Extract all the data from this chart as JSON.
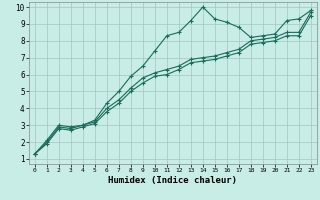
{
  "xlabel": "Humidex (Indice chaleur)",
  "xlim": [
    -0.5,
    23.5
  ],
  "ylim": [
    0.7,
    10.3
  ],
  "xticks": [
    0,
    1,
    2,
    3,
    4,
    5,
    6,
    7,
    8,
    9,
    10,
    11,
    12,
    13,
    14,
    15,
    16,
    17,
    18,
    19,
    20,
    21,
    22,
    23
  ],
  "yticks": [
    1,
    2,
    3,
    4,
    5,
    6,
    7,
    8,
    9,
    10
  ],
  "background_color": "#c8ece6",
  "grid_color": "#a0c8c0",
  "line_color": "#1a6b5a",
  "line1_x": [
    0,
    1,
    2,
    3,
    4,
    5,
    6,
    7,
    8,
    9,
    10,
    11,
    12,
    13,
    14,
    15,
    16,
    17,
    18,
    19,
    20,
    21,
    22,
    23
  ],
  "line1_y": [
    1.3,
    2.1,
    3.0,
    2.9,
    3.0,
    3.3,
    4.3,
    5.0,
    5.9,
    6.5,
    7.4,
    8.3,
    8.5,
    9.2,
    10.0,
    9.3,
    9.1,
    8.8,
    8.2,
    8.3,
    8.4,
    9.2,
    9.3,
    9.8
  ],
  "line2_x": [
    0,
    1,
    2,
    3,
    4,
    5,
    6,
    7,
    8,
    9,
    10,
    11,
    12,
    13,
    14,
    15,
    16,
    17,
    18,
    19,
    20,
    21,
    22,
    23
  ],
  "line2_y": [
    1.3,
    2.0,
    2.9,
    2.8,
    3.0,
    3.2,
    4.0,
    4.5,
    5.2,
    5.8,
    6.1,
    6.3,
    6.5,
    6.9,
    7.0,
    7.1,
    7.3,
    7.5,
    8.0,
    8.1,
    8.2,
    8.5,
    8.5,
    9.7
  ],
  "line3_x": [
    0,
    1,
    2,
    3,
    4,
    5,
    6,
    7,
    8,
    9,
    10,
    11,
    12,
    13,
    14,
    15,
    16,
    17,
    18,
    19,
    20,
    21,
    22,
    23
  ],
  "line3_y": [
    1.3,
    1.9,
    2.8,
    2.7,
    2.9,
    3.1,
    3.8,
    4.3,
    5.0,
    5.5,
    5.9,
    6.0,
    6.3,
    6.7,
    6.8,
    6.9,
    7.1,
    7.3,
    7.8,
    7.9,
    8.0,
    8.3,
    8.3,
    9.5
  ],
  "xlabel_fontsize": 6.5,
  "tick_fontsize_x": 4.5,
  "tick_fontsize_y": 5.5
}
